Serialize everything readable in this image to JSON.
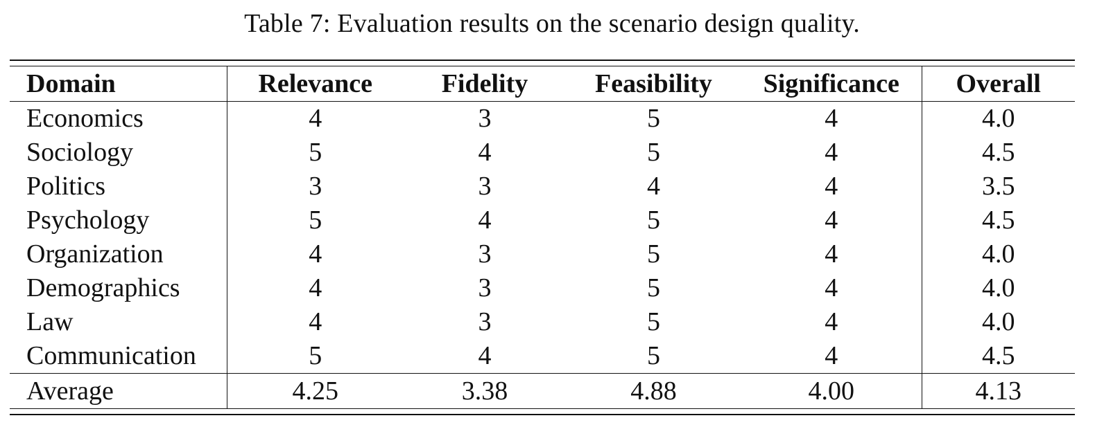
{
  "caption": "Table 7: Evaluation results on the scenario design quality.",
  "table": {
    "headers": [
      "Domain",
      "Relevance",
      "Fidelity",
      "Feasibility",
      "Significance",
      "Overall"
    ],
    "rows": [
      [
        "Economics",
        "4",
        "3",
        "5",
        "4",
        "4.0"
      ],
      [
        "Sociology",
        "5",
        "4",
        "5",
        "4",
        "4.5"
      ],
      [
        "Politics",
        "3",
        "3",
        "4",
        "4",
        "3.5"
      ],
      [
        "Psychology",
        "5",
        "4",
        "5",
        "4",
        "4.5"
      ],
      [
        "Organization",
        "4",
        "3",
        "5",
        "4",
        "4.0"
      ],
      [
        "Demographics",
        "4",
        "3",
        "5",
        "4",
        "4.0"
      ],
      [
        "Law",
        "4",
        "3",
        "5",
        "4",
        "4.0"
      ],
      [
        "Communication",
        "5",
        "4",
        "5",
        "4",
        "4.5"
      ]
    ],
    "average": [
      "Average",
      "4.25",
      "3.38",
      "4.88",
      "4.00",
      "4.13"
    ]
  }
}
